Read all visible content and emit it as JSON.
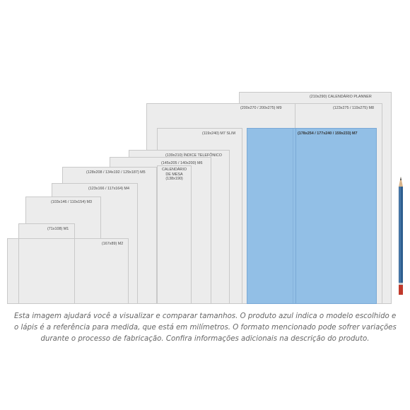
{
  "sizes": [
    {
      "label": "(210x290) CALENDÁRIO PLANNER"
    },
    {
      "label": "(200x270 / 200x275) M9"
    },
    {
      "label": "(123x275 / 119x275) M8"
    },
    {
      "label": "(119x240) M7 SLIM"
    },
    {
      "label": "(178x254 / 177x240 / 159x233) M7",
      "selected": true
    },
    {
      "label": "(139x210) ÍNDICE TELEFÔNICO"
    },
    {
      "label": "(145x205 / 140x200) M6"
    },
    {
      "label": "CALENDÁRIO\nDE MESA\n(138x190)"
    },
    {
      "label": "(128x208 / 134x192 / 129x187) M5"
    },
    {
      "label": "(123x166 / 117x164) M4"
    },
    {
      "label": "(103x146 / 110x154) M3"
    },
    {
      "label": "(71x108) M1"
    },
    {
      "label": "(167x89) M2"
    }
  ],
  "caption": [
    "Esta imagem ajudará você a visualizar e comparar tamanhos. O produto azul indica o modelo escolhido e",
    "o lápis é a referência para medida, que está em milímetros. O formato mencionado pode sofrer variações",
    "durante o processo de fabricação. Confira informações adicionais na descrição do produto."
  ],
  "colors": {
    "selected": "#92bfe6",
    "box": "#ececec",
    "pencil_body": "#2f5f8f",
    "pencil_end": "#c0392b"
  },
  "icons": [
    "pencil-icon"
  ]
}
